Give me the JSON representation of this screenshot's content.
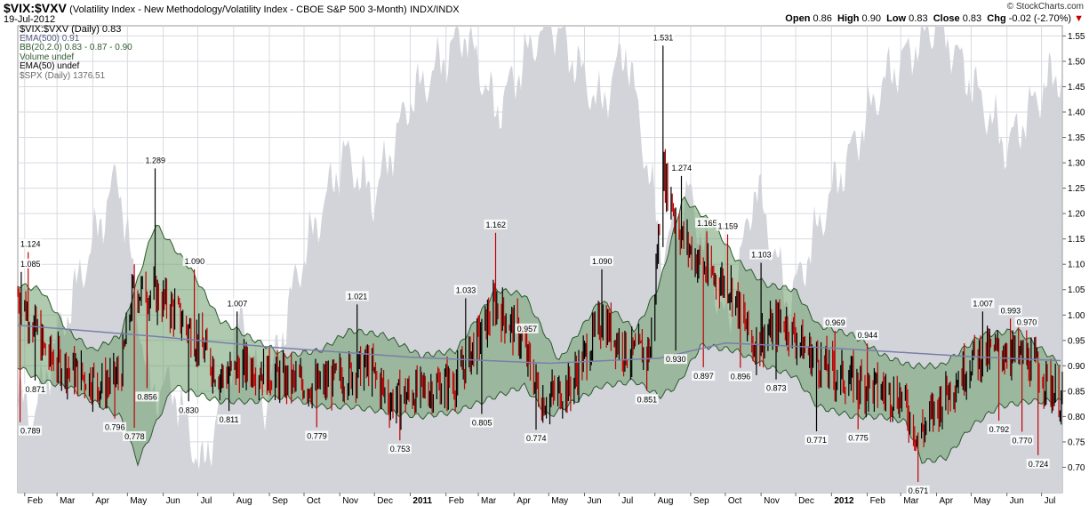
{
  "header": {
    "symbol": "$VIX:$VXV",
    "description": "(Volatility Index - New Methodology/Volatility Index - CBOE S&P 500 3-Month)",
    "exchange": "INDX/INDX",
    "date": "19-Jul-2012",
    "brand": "© StockCharts.com"
  },
  "quote": {
    "open_label": "Open",
    "open": "0.86",
    "high_label": "High",
    "high": "0.90",
    "low_label": "Low",
    "low": "0.83",
    "close_label": "Close",
    "close": "0.83",
    "chg_label": "Chg",
    "chg": "-0.02 (-2.70%)",
    "chg_color": "#c00000"
  },
  "legend": [
    "$VIX:$VXV (Daily) 0.83",
    "EMA(500) 0.91",
    "BB(20,2.0) 0.83 - 0.87 - 0.90",
    "Volume undef",
    "EMA(50) undef",
    "$SPX (Daily) 1376.51"
  ],
  "colors": {
    "up_bar": "#000000",
    "down_bar": "#c00000",
    "bb_fill": "#6e9e6e",
    "bb_line": "#2e5a2e",
    "ema_line": "#7a7fa8",
    "spx_area": "#d2d4da",
    "grid": "#d8dae0",
    "plot_bg": "#ffffff"
  },
  "chart_data": {
    "type": "line",
    "ylim": [
      0.65,
      1.57
    ],
    "yticks": [
      0.7,
      0.75,
      0.8,
      0.85,
      0.9,
      0.95,
      1.0,
      1.05,
      1.1,
      1.15,
      1.2,
      1.25,
      1.3,
      1.35,
      1.4,
      1.45,
      1.5,
      1.55
    ],
    "ytick_labels": [
      "0.70",
      "0.75",
      "0.80",
      "0.85",
      "0.90",
      "0.95",
      "1.00",
      "1.05",
      "1.10",
      "1.15",
      "1.20",
      "1.25",
      "1.30",
      "1.35",
      "1.40",
      "1.45",
      "1.50",
      "1.55"
    ],
    "xlim": [
      "2010-01-26",
      "2012-07-19"
    ],
    "xticks": [
      {
        "date": "2010-02-01",
        "label": "Feb",
        "bold": false
      },
      {
        "date": "2010-03-01",
        "label": "Mar",
        "bold": false
      },
      {
        "date": "2010-04-01",
        "label": "Apr",
        "bold": false
      },
      {
        "date": "2010-05-01",
        "label": "May",
        "bold": false
      },
      {
        "date": "2010-06-01",
        "label": "Jun",
        "bold": false
      },
      {
        "date": "2010-07-01",
        "label": "Jul",
        "bold": false
      },
      {
        "date": "2010-08-01",
        "label": "Aug",
        "bold": false
      },
      {
        "date": "2010-09-01",
        "label": "Sep",
        "bold": false
      },
      {
        "date": "2010-10-01",
        "label": "Oct",
        "bold": false
      },
      {
        "date": "2010-11-01",
        "label": "Nov",
        "bold": false
      },
      {
        "date": "2010-12-01",
        "label": "Dec",
        "bold": false
      },
      {
        "date": "2011-01-01",
        "label": "2011",
        "bold": true
      },
      {
        "date": "2011-02-01",
        "label": "Feb",
        "bold": false
      },
      {
        "date": "2011-03-01",
        "label": "Mar",
        "bold": false
      },
      {
        "date": "2011-04-01",
        "label": "Apr",
        "bold": false
      },
      {
        "date": "2011-05-01",
        "label": "May",
        "bold": false
      },
      {
        "date": "2011-06-01",
        "label": "Jun",
        "bold": false
      },
      {
        "date": "2011-07-01",
        "label": "Jul",
        "bold": false
      },
      {
        "date": "2011-08-01",
        "label": "Aug",
        "bold": false
      },
      {
        "date": "2011-09-01",
        "label": "Sep",
        "bold": false
      },
      {
        "date": "2011-10-01",
        "label": "Oct",
        "bold": false
      },
      {
        "date": "2011-11-01",
        "label": "Nov",
        "bold": false
      },
      {
        "date": "2011-12-01",
        "label": "Dec",
        "bold": false
      },
      {
        "date": "2012-01-01",
        "label": "2012",
        "bold": true
      },
      {
        "date": "2012-02-01",
        "label": "Feb",
        "bold": false
      },
      {
        "date": "2012-03-01",
        "label": "Mar",
        "bold": false
      },
      {
        "date": "2012-04-01",
        "label": "Apr",
        "bold": false
      },
      {
        "date": "2012-05-01",
        "label": "May",
        "bold": false
      },
      {
        "date": "2012-06-01",
        "label": "Jun",
        "bold": false
      },
      {
        "date": "2012-07-01",
        "label": "Jul",
        "bold": false
      }
    ],
    "annotations": [
      {
        "date": "2010-01-29",
        "value": 1.085,
        "label": "1.085"
      },
      {
        "date": "2010-02-04",
        "value": 1.124,
        "label": "1.124"
      },
      {
        "date": "2010-02-10",
        "value": 0.871,
        "label": "0.871"
      },
      {
        "date": "2010-01-28",
        "value": 0.789,
        "label": "0.789"
      },
      {
        "date": "2010-04-20",
        "value": 0.796,
        "label": "0.796"
      },
      {
        "date": "2010-05-07",
        "value": 0.778,
        "label": "0.778"
      },
      {
        "date": "2010-05-18",
        "value": 0.856,
        "label": "0.856"
      },
      {
        "date": "2010-05-25",
        "value": 1.289,
        "label": "1.289"
      },
      {
        "date": "2010-06-28",
        "value": 1.09,
        "label": "1.090"
      },
      {
        "date": "2010-06-23",
        "value": 0.83,
        "label": "0.830"
      },
      {
        "date": "2010-07-28",
        "value": 0.811,
        "label": "0.811"
      },
      {
        "date": "2010-08-04",
        "value": 1.007,
        "label": "1.007"
      },
      {
        "date": "2010-10-12",
        "value": 0.779,
        "label": "0.779"
      },
      {
        "date": "2010-11-16",
        "value": 1.021,
        "label": "1.021"
      },
      {
        "date": "2010-12-23",
        "value": 0.753,
        "label": "0.753"
      },
      {
        "date": "2011-02-18",
        "value": 1.033,
        "label": "1.033"
      },
      {
        "date": "2011-03-04",
        "value": 0.805,
        "label": "0.805"
      },
      {
        "date": "2011-03-16",
        "value": 1.162,
        "label": "1.162"
      },
      {
        "date": "2011-04-12",
        "value": 0.957,
        "label": "0.957"
      },
      {
        "date": "2011-04-20",
        "value": 0.774,
        "label": "0.774"
      },
      {
        "date": "2011-06-16",
        "value": 1.09,
        "label": "1.090"
      },
      {
        "date": "2011-07-25",
        "value": 0.851,
        "label": "0.851"
      },
      {
        "date": "2011-08-08",
        "value": 1.531,
        "label": "1.531"
      },
      {
        "date": "2011-08-19",
        "value": 0.93,
        "label": "0.930"
      },
      {
        "date": "2011-08-24",
        "value": 1.274,
        "label": "1.274"
      },
      {
        "date": "2011-09-12",
        "value": 0.897,
        "label": "0.897"
      },
      {
        "date": "2011-09-15",
        "value": 1.165,
        "label": "1.165"
      },
      {
        "date": "2011-10-03",
        "value": 1.159,
        "label": "1.159"
      },
      {
        "date": "2011-10-14",
        "value": 0.896,
        "label": "0.896"
      },
      {
        "date": "2011-11-01",
        "value": 1.103,
        "label": "1.103"
      },
      {
        "date": "2011-11-14",
        "value": 0.873,
        "label": "0.873"
      },
      {
        "date": "2011-12-19",
        "value": 0.771,
        "label": "0.771"
      },
      {
        "date": "2012-01-04",
        "value": 0.969,
        "label": "0.969"
      },
      {
        "date": "2012-01-24",
        "value": 0.775,
        "label": "0.775"
      },
      {
        "date": "2012-02-01",
        "value": 0.944,
        "label": "0.944"
      },
      {
        "date": "2012-03-16",
        "value": 0.671,
        "label": "0.671"
      },
      {
        "date": "2012-05-11",
        "value": 1.007,
        "label": "1.007"
      },
      {
        "date": "2012-05-25",
        "value": 0.792,
        "label": "0.792"
      },
      {
        "date": "2012-06-04",
        "value": 0.993,
        "label": "0.993"
      },
      {
        "date": "2012-06-14",
        "value": 0.77,
        "label": "0.770"
      },
      {
        "date": "2012-06-18",
        "value": 0.97,
        "label": "0.970"
      },
      {
        "date": "2012-06-28",
        "value": 0.724,
        "label": "0.724"
      }
    ],
    "series": [
      {
        "name": "$VIX:$VXV (Daily)",
        "kind": "hlc_bars",
        "anchors": [
          [
            "2010-01-26",
            1.04
          ],
          [
            "2010-02-05",
            1.0
          ],
          [
            "2010-02-20",
            0.92
          ],
          [
            "2010-03-15",
            0.89
          ],
          [
            "2010-04-10",
            0.86
          ],
          [
            "2010-04-25",
            0.88
          ],
          [
            "2010-05-06",
            1.05
          ],
          [
            "2010-05-25",
            1.04
          ],
          [
            "2010-06-10",
            1.01
          ],
          [
            "2010-06-30",
            0.95
          ],
          [
            "2010-07-20",
            0.88
          ],
          [
            "2010-08-15",
            0.9
          ],
          [
            "2010-09-15",
            0.87
          ],
          [
            "2010-10-15",
            0.86
          ],
          [
            "2010-11-05",
            0.88
          ],
          [
            "2010-11-25",
            0.9
          ],
          [
            "2010-12-15",
            0.83
          ],
          [
            "2011-01-10",
            0.85
          ],
          [
            "2011-02-10",
            0.87
          ],
          [
            "2011-03-16",
            1.02
          ],
          [
            "2011-04-05",
            0.96
          ],
          [
            "2011-04-25",
            0.83
          ],
          [
            "2011-05-20",
            0.86
          ],
          [
            "2011-06-16",
            0.99
          ],
          [
            "2011-07-10",
            0.92
          ],
          [
            "2011-07-28",
            0.93
          ],
          [
            "2011-08-08",
            1.28
          ],
          [
            "2011-08-25",
            1.15
          ],
          [
            "2011-09-15",
            1.08
          ],
          [
            "2011-10-05",
            1.06
          ],
          [
            "2011-10-25",
            0.94
          ],
          [
            "2011-11-20",
            0.99
          ],
          [
            "2011-12-10",
            0.93
          ],
          [
            "2012-01-05",
            0.88
          ],
          [
            "2012-02-01",
            0.86
          ],
          [
            "2012-03-01",
            0.84
          ],
          [
            "2012-03-16",
            0.76
          ],
          [
            "2012-04-10",
            0.85
          ],
          [
            "2012-05-05",
            0.92
          ],
          [
            "2012-06-01",
            0.93
          ],
          [
            "2012-06-25",
            0.9
          ],
          [
            "2012-07-19",
            0.83
          ]
        ]
      },
      {
        "name": "EMA(500)",
        "kind": "line",
        "anchors": [
          [
            "2010-01-26",
            0.98
          ],
          [
            "2010-05-25",
            0.958
          ],
          [
            "2010-09-01",
            0.937
          ],
          [
            "2011-01-01",
            0.917
          ],
          [
            "2011-05-01",
            0.905
          ],
          [
            "2011-08-05",
            0.915
          ],
          [
            "2011-10-01",
            0.945
          ],
          [
            "2012-01-01",
            0.935
          ],
          [
            "2012-05-01",
            0.918
          ],
          [
            "2012-07-19",
            0.91
          ]
        ]
      },
      {
        "name": "BB(20,2.0)",
        "kind": "band",
        "upper": [
          [
            "2010-01-26",
            1.06
          ],
          [
            "2010-02-15",
            1.05
          ],
          [
            "2010-03-10",
            0.97
          ],
          [
            "2010-04-01",
            0.93
          ],
          [
            "2010-04-25",
            0.96
          ],
          [
            "2010-05-25",
            1.18
          ],
          [
            "2010-06-25",
            1.09
          ],
          [
            "2010-07-20",
            0.99
          ],
          [
            "2010-08-20",
            0.95
          ],
          [
            "2010-09-15",
            0.92
          ],
          [
            "2010-10-15",
            0.93
          ],
          [
            "2010-11-10",
            0.97
          ],
          [
            "2010-12-10",
            0.96
          ],
          [
            "2011-01-10",
            0.92
          ],
          [
            "2011-02-10",
            0.93
          ],
          [
            "2011-03-16",
            1.05
          ],
          [
            "2011-04-10",
            1.04
          ],
          [
            "2011-05-10",
            0.91
          ],
          [
            "2011-06-15",
            1.03
          ],
          [
            "2011-07-15",
            0.97
          ],
          [
            "2011-08-05",
            1.06
          ],
          [
            "2011-08-25",
            1.23
          ],
          [
            "2011-09-20",
            1.18
          ],
          [
            "2011-10-10",
            1.11
          ],
          [
            "2011-11-05",
            1.06
          ],
          [
            "2011-11-30",
            1.05
          ],
          [
            "2011-12-20",
            0.98
          ],
          [
            "2012-01-20",
            0.96
          ],
          [
            "2012-02-15",
            0.92
          ],
          [
            "2012-03-10",
            0.9
          ],
          [
            "2012-04-05",
            0.9
          ],
          [
            "2012-05-10",
            0.96
          ],
          [
            "2012-06-10",
            0.97
          ],
          [
            "2012-07-19",
            0.9
          ]
        ],
        "lower": [
          [
            "2010-01-26",
            0.9
          ],
          [
            "2010-02-15",
            0.87
          ],
          [
            "2010-03-10",
            0.86
          ],
          [
            "2010-04-01",
            0.83
          ],
          [
            "2010-04-25",
            0.8
          ],
          [
            "2010-05-10",
            0.71
          ],
          [
            "2010-06-10",
            0.86
          ],
          [
            "2010-07-20",
            0.83
          ],
          [
            "2010-08-20",
            0.83
          ],
          [
            "2010-09-15",
            0.84
          ],
          [
            "2010-10-15",
            0.82
          ],
          [
            "2010-11-10",
            0.82
          ],
          [
            "2010-12-10",
            0.81
          ],
          [
            "2011-01-10",
            0.8
          ],
          [
            "2011-02-10",
            0.81
          ],
          [
            "2011-03-16",
            0.84
          ],
          [
            "2011-04-10",
            0.86
          ],
          [
            "2011-05-01",
            0.8
          ],
          [
            "2011-06-15",
            0.86
          ],
          [
            "2011-07-15",
            0.87
          ],
          [
            "2011-08-05",
            0.84
          ],
          [
            "2011-08-20",
            0.86
          ],
          [
            "2011-09-10",
            0.94
          ],
          [
            "2011-10-10",
            0.93
          ],
          [
            "2011-11-05",
            0.9
          ],
          [
            "2011-11-30",
            0.88
          ],
          [
            "2011-12-20",
            0.82
          ],
          [
            "2012-01-20",
            0.8
          ],
          [
            "2012-02-15",
            0.8
          ],
          [
            "2012-03-05",
            0.79
          ],
          [
            "2012-03-20",
            0.71
          ],
          [
            "2012-04-10",
            0.72
          ],
          [
            "2012-05-01",
            0.78
          ],
          [
            "2012-05-25",
            0.82
          ],
          [
            "2012-06-20",
            0.83
          ],
          [
            "2012-07-19",
            0.83
          ]
        ]
      },
      {
        "name": "$SPX (Daily)",
        "kind": "area",
        "anchors": [
          [
            "2010-01-26",
            0.84
          ],
          [
            "2010-02-08",
            0.8
          ],
          [
            "2010-03-01",
            0.95
          ],
          [
            "2010-04-23",
            1.28
          ],
          [
            "2010-05-20",
            0.85
          ],
          [
            "2010-06-10",
            0.86
          ],
          [
            "2010-07-05",
            0.69
          ],
          [
            "2010-08-09",
            1.0
          ],
          [
            "2010-08-26",
            0.81
          ],
          [
            "2010-09-25",
            1.08
          ],
          [
            "2010-10-15",
            1.2
          ],
          [
            "2010-11-05",
            1.32
          ],
          [
            "2010-11-30",
            1.23
          ],
          [
            "2010-12-31",
            1.42
          ],
          [
            "2011-02-18",
            1.56
          ],
          [
            "2011-03-16",
            1.4
          ],
          [
            "2011-05-01",
            1.59
          ],
          [
            "2011-06-15",
            1.41
          ],
          [
            "2011-07-07",
            1.53
          ],
          [
            "2011-08-08",
            1.12
          ],
          [
            "2011-08-31",
            1.24
          ],
          [
            "2011-10-03",
            0.97
          ],
          [
            "2011-10-27",
            1.26
          ],
          [
            "2011-11-25",
            1.02
          ],
          [
            "2011-12-30",
            1.23
          ],
          [
            "2012-02-15",
            1.46
          ],
          [
            "2012-04-02",
            1.58
          ],
          [
            "2012-06-01",
            1.33
          ],
          [
            "2012-07-03",
            1.45
          ],
          [
            "2012-07-19",
            1.48
          ]
        ]
      }
    ]
  }
}
